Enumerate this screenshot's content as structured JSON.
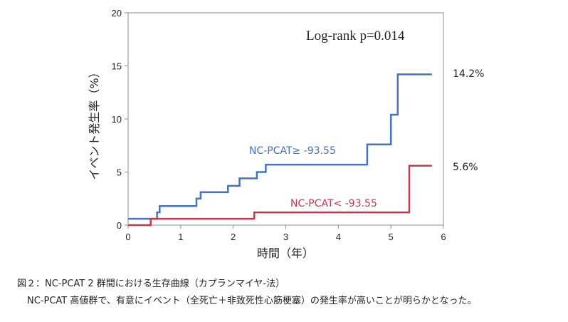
{
  "chart_data": {
    "type": "line",
    "step": true,
    "annotation": "Log-rank p=0.014",
    "xlabel": "時間（年）",
    "ylabel": "イベント発生率（%）",
    "xlim": [
      0,
      6
    ],
    "ylim": [
      0,
      20
    ],
    "xticks": [
      0,
      1,
      2,
      3,
      4,
      5,
      6
    ],
    "yticks": [
      0,
      5,
      10,
      15,
      20
    ],
    "grid": false,
    "series": [
      {
        "name": "NC-PCAT≥ -93.55",
        "color": "#4472c4",
        "end_label": "14.2%",
        "points": [
          [
            0,
            0.6
          ],
          [
            0.55,
            0.6
          ],
          [
            0.55,
            1.2
          ],
          [
            0.6,
            1.2
          ],
          [
            0.6,
            1.8
          ],
          [
            1.3,
            1.8
          ],
          [
            1.3,
            2.5
          ],
          [
            1.38,
            2.5
          ],
          [
            1.38,
            3.1
          ],
          [
            1.9,
            3.1
          ],
          [
            1.9,
            3.7
          ],
          [
            2.12,
            3.7
          ],
          [
            2.12,
            4.4
          ],
          [
            2.45,
            4.4
          ],
          [
            2.45,
            5.0
          ],
          [
            2.62,
            5.0
          ],
          [
            2.62,
            5.7
          ],
          [
            4.55,
            5.7
          ],
          [
            4.55,
            7.6
          ],
          [
            5.0,
            7.6
          ],
          [
            5.0,
            10.4
          ],
          [
            5.13,
            10.4
          ],
          [
            5.13,
            14.2
          ],
          [
            5.78,
            14.2
          ]
        ]
      },
      {
        "name": "NC-PCAT< -93.55",
        "color": "#c0394f",
        "end_label": "5.6%",
        "points": [
          [
            0,
            0
          ],
          [
            0.43,
            0
          ],
          [
            0.43,
            0.6
          ],
          [
            2.4,
            0.6
          ],
          [
            2.4,
            1.2
          ],
          [
            5.35,
            1.2
          ],
          [
            5.35,
            5.6
          ],
          [
            5.78,
            5.6
          ]
        ]
      }
    ]
  },
  "captions": {
    "line1": "図２：NC-PCAT 2 群間における生存曲線（カプランマイヤ-法）",
    "line2": "NC-PCAT 高値群で、有意にイベント（全死亡＋非致死性心筋梗塞）の発生率が高いことが明らかとなった。"
  }
}
